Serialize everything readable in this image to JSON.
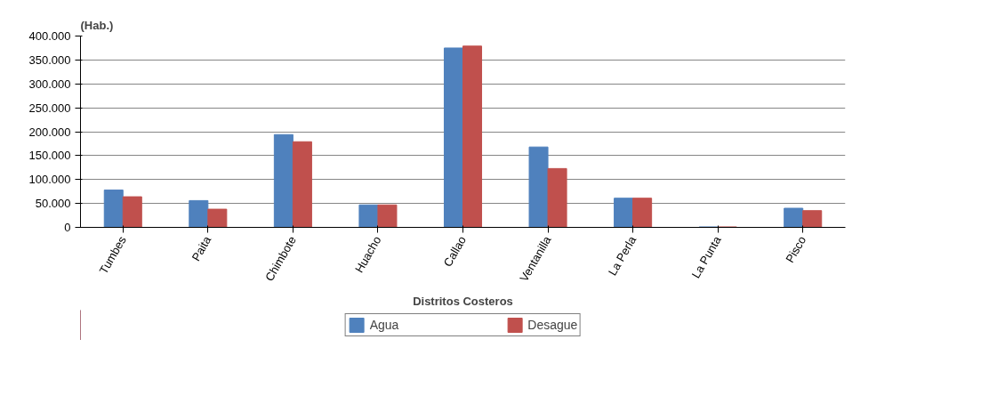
{
  "chart_data": {
    "type": "bar",
    "ylabel": "(Hab.)",
    "xlabel": "Distritos Costeros",
    "categories": [
      "Tumbes",
      "Paita",
      "Chimbote",
      "Huacho",
      "Callao",
      "Ventanilla",
      "La Perla",
      "La Punta",
      "Pisco"
    ],
    "series": [
      {
        "name": "Agua",
        "color": "#4f81bd",
        "values": [
          78000,
          56000,
          194000,
          47000,
          375000,
          168000,
          61000,
          1000,
          40000
        ]
      },
      {
        "name": "Desague",
        "color": "#c0504d",
        "values": [
          64000,
          38000,
          179000,
          47000,
          379000,
          123000,
          61000,
          1000,
          35000
        ]
      }
    ],
    "ylim": [
      0,
      400000
    ],
    "yticks": [
      {
        "value": 0,
        "label": "0"
      },
      {
        "value": 50000,
        "label": "50.000"
      },
      {
        "value": 100000,
        "label": "100.000"
      },
      {
        "value": 150000,
        "label": "150.000"
      },
      {
        "value": 200000,
        "label": "200.000"
      },
      {
        "value": 250000,
        "label": "250.000"
      },
      {
        "value": 300000,
        "label": "300.000"
      },
      {
        "value": 350000,
        "label": "350.000"
      },
      {
        "value": 400000,
        "label": "400.000"
      }
    ],
    "grid": "y",
    "legend": "bottom"
  }
}
